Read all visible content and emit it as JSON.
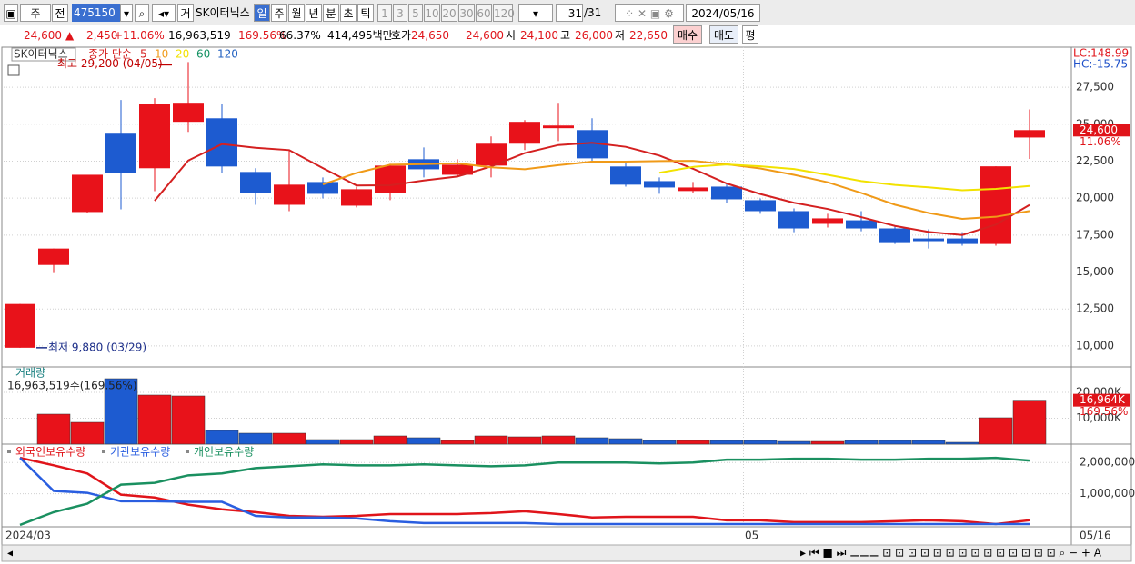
{
  "toolbar": {
    "period_type": "주",
    "mode": "전",
    "code": "475150",
    "flag": "거",
    "name": "SK이터닉스",
    "units": [
      "일",
      "주",
      "월",
      "년",
      "분",
      "초",
      "틱"
    ],
    "minutes": [
      "1",
      "3",
      "5",
      "10",
      "20",
      "30",
      "60",
      "120"
    ],
    "count": "31",
    "total": "/31",
    "date": "2024/05/16"
  },
  "quote": {
    "price": "24,600",
    "arrow": "▲",
    "change": "2,450",
    "change_pct": "+11.06%",
    "volume": "16,963,519",
    "volume_pct": "169.56%",
    "turnover": "66.37%",
    "amount": "414,495백만",
    "ask_label": "호가",
    "ask": "24,650",
    "bid": "24,600",
    "open_label": "시",
    "open": "24,100",
    "high_label": "고",
    "high": "26,000",
    "low_label": "저",
    "low": "22,650",
    "buy": "매수",
    "sell": "매도",
    "avg": "평"
  },
  "chart_data": [
    {
      "type": "candlestick",
      "title": "SK이터닉스",
      "legend_label": "종가 단순",
      "up_color": "#e8121a",
      "down_color": "#1d5bd0",
      "ma": [
        {
          "name": "5",
          "color": "#d42020"
        },
        {
          "name": "10",
          "color": "#f09a18"
        },
        {
          "name": "20",
          "color": "#f2e200"
        },
        {
          "name": "60",
          "color": "#109060"
        },
        {
          "name": "120",
          "color": "#2060c0"
        }
      ],
      "categories": [
        "2024/03",
        null,
        null,
        null,
        null,
        null,
        null,
        null,
        null,
        null,
        null,
        null,
        null,
        null,
        null,
        null,
        null,
        null,
        null,
        null,
        null,
        null,
        "05",
        null,
        null,
        null,
        null,
        null,
        null,
        null,
        null
      ],
      "last_date": "05/16",
      "open": [
        9880,
        15480,
        19060,
        24420,
        22020,
        25160,
        25400,
        21770,
        19550,
        21090,
        19490,
        20350,
        22630,
        21580,
        22200,
        23680,
        24730,
        24600,
        22140,
        21150,
        20480,
        20780,
        19860,
        19120,
        18260,
        18500,
        17950,
        17270,
        17270,
        16900,
        24100
      ],
      "high": [
        12840,
        16590,
        21580,
        26640,
        26760,
        29200,
        26390,
        22020,
        23250,
        21400,
        20780,
        22320,
        23430,
        22630,
        24170,
        25280,
        26450,
        25400,
        22450,
        21400,
        21090,
        20970,
        19980,
        19300,
        18940,
        19120,
        18130,
        17890,
        17700,
        22150,
        26000
      ],
      "low": [
        9880,
        14930,
        19000,
        19240,
        20470,
        24480,
        21710,
        19550,
        19120,
        19980,
        19370,
        19860,
        21400,
        21400,
        21400,
        23250,
        23860,
        22450,
        20780,
        20290,
        20350,
        19680,
        18940,
        17700,
        18010,
        17760,
        16900,
        16590,
        16780,
        16780,
        22650
      ],
      "close": [
        12840,
        16590,
        21580,
        21710,
        26390,
        26450,
        22140,
        20350,
        20910,
        20290,
        20600,
        22200,
        21950,
        22260,
        23680,
        25160,
        24910,
        22690,
        20910,
        20720,
        20720,
        19920,
        19120,
        17950,
        18630,
        17950,
        16960,
        17090,
        16900,
        22150,
        24600
      ],
      "ylim": [
        8580,
        30210
      ],
      "yticks": [
        {
          "value": 10000,
          "label": "10,000"
        },
        {
          "value": 12500,
          "label": "12,500"
        },
        {
          "value": 15000,
          "label": "15,000"
        },
        {
          "value": 17500,
          "label": "17,500"
        },
        {
          "value": 20000,
          "label": "20,000"
        },
        {
          "value": 22500,
          "label": "22,500"
        },
        {
          "value": 25000,
          "label": "25,000"
        },
        {
          "value": 27500,
          "label": "27,500"
        }
      ],
      "high_note": "최고 29,200 (04/05)",
      "low_note": "최저 9,880 (03/29)",
      "lc": "LC:148.99",
      "hc": "HC:-15.75",
      "last_price": {
        "value": 24600,
        "label": "24,600"
      },
      "last_pct": "11.06%"
    },
    {
      "type": "bar",
      "title": "거래량",
      "subtitle": "16,963,519주(169.56%)",
      "values": [
        null,
        11580,
        8420,
        25260,
        18950,
        18600,
        5260,
        4210,
        4210,
        1750,
        1750,
        3160,
        2460,
        1400,
        3160,
        2810,
        3160,
        2460,
        2100,
        1400,
        1400,
        1400,
        1400,
        1050,
        1050,
        1400,
        1400,
        1400,
        700,
        10180,
        16964
      ],
      "ylim": [
        0,
        29470
      ],
      "yticks": [
        {
          "value": 10000,
          "label": "10,000K"
        },
        {
          "value": 20000,
          "label": "20,000K"
        }
      ],
      "last_label": "16,964K",
      "last_pct": "169.56%"
    },
    {
      "type": "line",
      "ylim": [
        -59000,
        2560000
      ],
      "yticks": [
        {
          "value": 1000000,
          "label": "1,000,000"
        },
        {
          "value": 2000000,
          "label": "2,000,000"
        }
      ],
      "series": [
        {
          "name": "외국인보유수량",
          "color": "#e0141a",
          "values": [
            2150000,
            1910000,
            1650000,
            970000,
            880000,
            650000,
            500000,
            410000,
            290000,
            260000,
            290000,
            350000,
            350000,
            350000,
            380000,
            440000,
            350000,
            240000,
            260000,
            260000,
            260000,
            150000,
            150000,
            90000,
            90000,
            90000,
            120000,
            150000,
            120000,
            30000,
            150000
          ]
        },
        {
          "name": "기관보유수량",
          "color": "#2a5ee0",
          "values": [
            2150000,
            1090000,
            1030000,
            760000,
            760000,
            740000,
            740000,
            290000,
            240000,
            240000,
            210000,
            120000,
            60000,
            60000,
            60000,
            60000,
            30000,
            30000,
            30000,
            30000,
            30000,
            30000,
            30000,
            30000,
            30000,
            30000,
            30000,
            30000,
            30000,
            30000,
            30000
          ]
        },
        {
          "name": "개인보유수량",
          "color": "#1a9060",
          "values": [
            0,
            410000,
            680000,
            1290000,
            1350000,
            1590000,
            1650000,
            1820000,
            1880000,
            1940000,
            1910000,
            1910000,
            1940000,
            1910000,
            1880000,
            1910000,
            2000000,
            2000000,
            2000000,
            1970000,
            2000000,
            2090000,
            2090000,
            2120000,
            2120000,
            2090000,
            2090000,
            2120000,
            2120000,
            2150000,
            2060000
          ]
        }
      ]
    }
  ]
}
